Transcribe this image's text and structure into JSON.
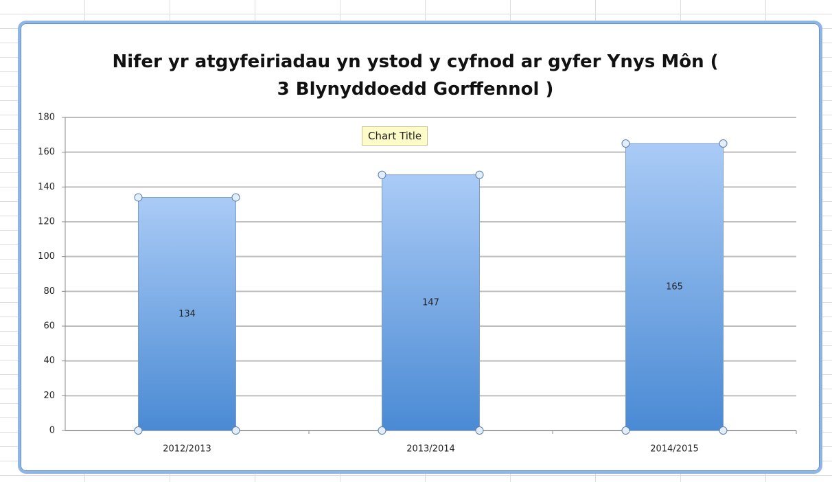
{
  "chart_data": {
    "type": "bar",
    "title": "Nifer yr atgyfeiriadau yn ystod y cyfnod ar gyfer Ynys Môn  ( 3 Blynyddoedd Gorffennol )",
    "tooltip": "Chart Title",
    "categories": [
      "2012/2013",
      "2013/2014",
      "2014/2015"
    ],
    "values": [
      134,
      147,
      165
    ],
    "color": "#4a8ad4",
    "ylim": [
      0,
      180
    ],
    "yticks": [
      0,
      20,
      40,
      60,
      80,
      100,
      120,
      140,
      160,
      180
    ],
    "grid": true
  }
}
